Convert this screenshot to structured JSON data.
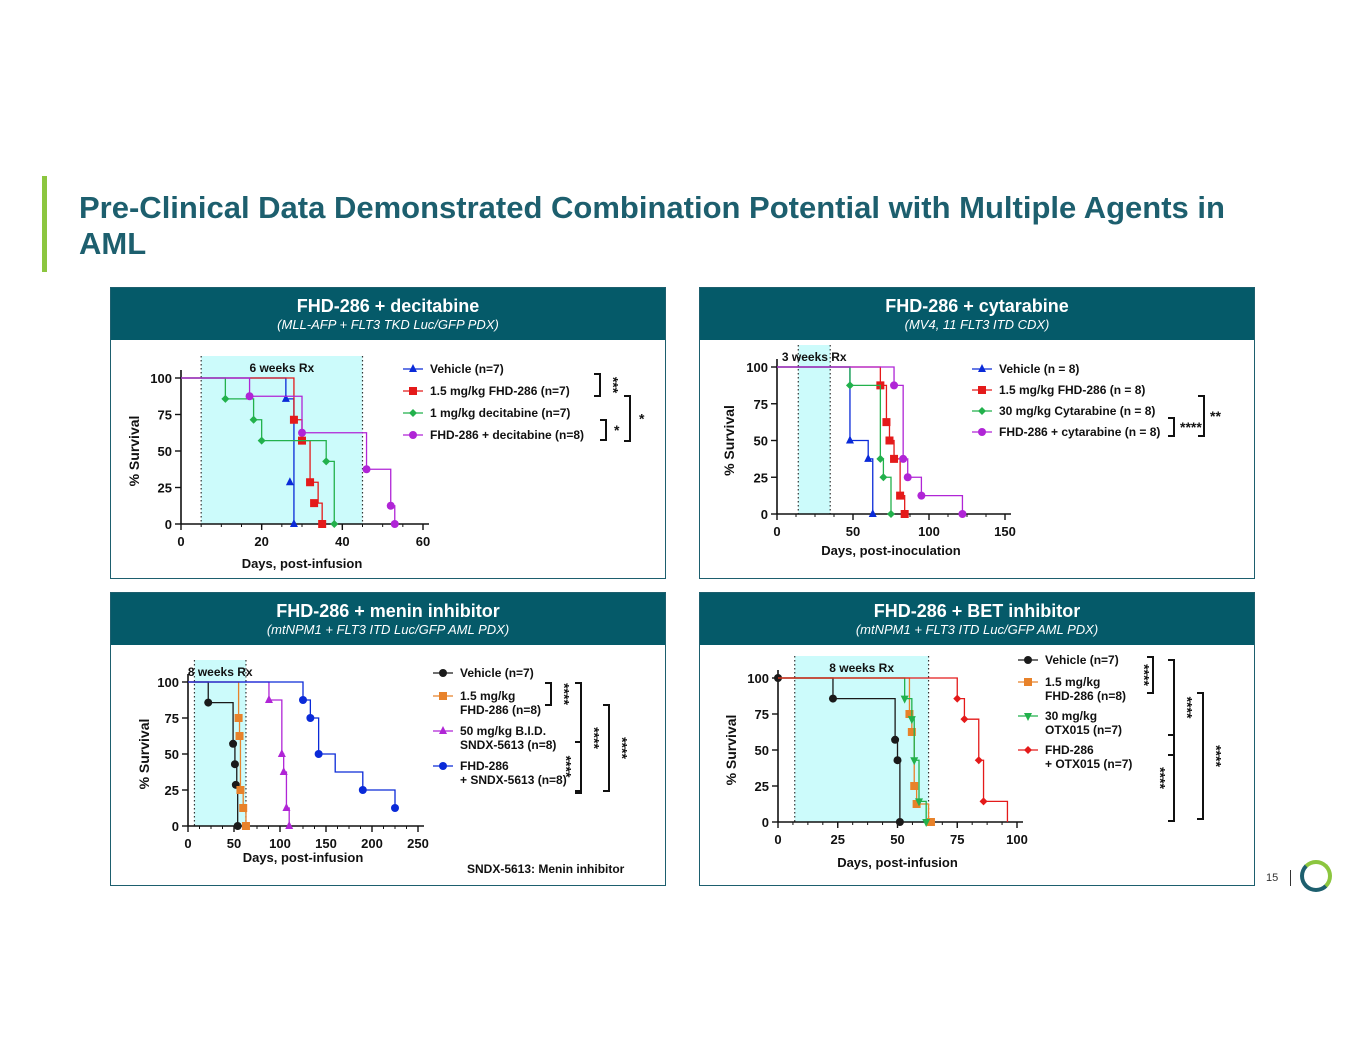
{
  "colors": {
    "title": "#1d5f6e",
    "accent_bar": "#8cc63f",
    "panel_header": "#055a69",
    "rx_shade": "#ccfbfb"
  },
  "slide": {
    "title": "Pre-Clinical Data Demonstrated Combination Potential with Multiple Agents in AML",
    "page_number": "15"
  },
  "chart_data": [
    {
      "type": "line",
      "title": "FHD-286 + decitabine",
      "subtitle": "(MLL-AFP + FLT3 TKD Luc/GFP PDX)",
      "xlabel": "Days, post-infusion",
      "ylabel": "% Survival",
      "xlim": [
        0,
        60
      ],
      "ylim": [
        0,
        100
      ],
      "xticks": [
        0,
        20,
        40,
        60
      ],
      "yticks": [
        0,
        25,
        50,
        75,
        100
      ],
      "rx_label": "6 weeks Rx",
      "rx_range": [
        5,
        45
      ],
      "significance": [
        "***",
        "*",
        "*"
      ],
      "series": [
        {
          "name": "Vehicle (n=7)",
          "color": "#0a2ad8",
          "marker": "triangle",
          "x": [
            0,
            26,
            28
          ],
          "y": [
            100,
            85.7,
            0
          ],
          "markers_x": [
            26,
            27,
            28
          ],
          "markers_y": [
            85.7,
            28.6,
            0
          ]
        },
        {
          "name": "1.5 mg/kg FHD-286 (n=7)",
          "color": "#e41a1a",
          "marker": "square",
          "x": [
            0,
            28,
            30,
            32,
            34,
            35
          ],
          "y": [
            100,
            71.4,
            57.1,
            28.6,
            14.3,
            0
          ],
          "markers_x": [
            28,
            30,
            32,
            33,
            35
          ],
          "markers_y": [
            71.4,
            57.1,
            28.6,
            14.3,
            0
          ]
        },
        {
          "name": "1 mg/kg decitabine (n=7)",
          "color": "#22b14c",
          "marker": "diamond",
          "x": [
            0,
            11,
            18,
            20,
            36,
            38
          ],
          "y": [
            100,
            85.7,
            71.4,
            57.1,
            42.9,
            0
          ],
          "markers_x": [
            11,
            18,
            20,
            36,
            38
          ],
          "markers_y": [
            85.7,
            71.4,
            57.1,
            42.9,
            0
          ]
        },
        {
          "name": "FHD-286 + decitabine (n=8)",
          "color": "#b025d6",
          "marker": "circle",
          "x": [
            0,
            17,
            30,
            46,
            52,
            53
          ],
          "y": [
            100,
            87.5,
            62.5,
            37.5,
            12.5,
            0
          ],
          "markers_x": [
            17,
            30,
            46,
            52,
            53
          ],
          "markers_y": [
            87.5,
            62.5,
            37.5,
            12.5,
            0
          ]
        }
      ]
    },
    {
      "type": "line",
      "title": "FHD-286 + cytarabine",
      "subtitle": "(MV4, 11 FLT3 ITD CDX)",
      "xlabel": "Days, post-inoculation",
      "ylabel": "% Survival",
      "xlim": [
        0,
        150
      ],
      "ylim": [
        0,
        100
      ],
      "xticks": [
        0,
        50,
        100,
        150
      ],
      "yticks": [
        0,
        25,
        50,
        75,
        100
      ],
      "rx_label": "3 weeks Rx",
      "rx_range": [
        14,
        35
      ],
      "significance": [
        "**",
        "****"
      ],
      "series": [
        {
          "name": "Vehicle (n = 8)",
          "color": "#0a2ad8",
          "marker": "triangle",
          "x": [
            0,
            48,
            60,
            63
          ],
          "y": [
            100,
            50,
            37.5,
            0
          ],
          "markers_x": [
            48,
            60,
            63
          ],
          "markers_y": [
            50,
            37.5,
            0
          ]
        },
        {
          "name": "1.5 mg/kg FHD-286 (n = 8)",
          "color": "#e41a1a",
          "marker": "square",
          "x": [
            0,
            68,
            72,
            74,
            77,
            81,
            84
          ],
          "y": [
            100,
            87.5,
            62.5,
            50,
            37.5,
            12.5,
            0
          ],
          "markers_x": [
            68,
            72,
            74,
            77,
            81,
            84
          ],
          "markers_y": [
            87.5,
            62.5,
            50,
            37.5,
            12.5,
            0
          ]
        },
        {
          "name": "30 mg/kg Cytarabine (n = 8)",
          "color": "#22b14c",
          "marker": "diamond",
          "x": [
            0,
            48,
            68,
            70,
            75
          ],
          "y": [
            100,
            87.5,
            37.5,
            25,
            0
          ],
          "markers_x": [
            48,
            68,
            70,
            75
          ],
          "markers_y": [
            87.5,
            37.5,
            25,
            0
          ]
        },
        {
          "name": "FHD-286 + cytarabine (n = 8)",
          "color": "#b025d6",
          "marker": "circle",
          "x": [
            0,
            77,
            83,
            86,
            95,
            122
          ],
          "y": [
            100,
            87.5,
            37.5,
            25,
            12.5,
            0
          ],
          "markers_x": [
            77,
            83,
            86,
            95,
            122
          ],
          "markers_y": [
            87.5,
            37.5,
            25,
            12.5,
            0
          ]
        }
      ]
    },
    {
      "type": "line",
      "title": "FHD-286 + menin inhibitor",
      "subtitle": "(mtNPM1 + FLT3 ITD Luc/GFP AML PDX)",
      "xlabel": "Days, post-infusion",
      "ylabel": "% Survival",
      "xlim": [
        0,
        250
      ],
      "ylim": [
        0,
        100
      ],
      "xticks": [
        0,
        50,
        100,
        150,
        200,
        250
      ],
      "yticks": [
        0,
        25,
        50,
        75,
        100
      ],
      "rx_label": "8 weeks  Rx",
      "rx_range": [
        7,
        63
      ],
      "significance": [
        "****",
        "****",
        "****",
        "****"
      ],
      "note": "SNDX-5613: Menin inhibitor",
      "series": [
        {
          "name": "Vehicle (n=7)",
          "color": "#1a1a1a",
          "marker": "circle",
          "x": [
            0,
            22,
            49,
            51,
            53,
            54
          ],
          "y": [
            100,
            85.7,
            57.1,
            42.9,
            28.6,
            0
          ],
          "markers_x": [
            22,
            49,
            51,
            52,
            54
          ],
          "markers_y": [
            85.7,
            57.1,
            42.9,
            28.6,
            0
          ]
        },
        {
          "name": "1.5 mg/kg FHD-286 (n=8)",
          "color": "#e8822a",
          "marker": "square",
          "x": [
            0,
            55,
            56,
            57,
            60,
            63
          ],
          "y": [
            100,
            75,
            62.5,
            25,
            12.5,
            0
          ],
          "markers_x": [
            55,
            56,
            57,
            60,
            63
          ],
          "markers_y": [
            75,
            62.5,
            25,
            12.5,
            0
          ]
        },
        {
          "name": "50 mg/kg B.I.D. SNDX-5613 (n=8)",
          "color": "#b025d6",
          "marker": "triangle",
          "x": [
            0,
            88,
            102,
            104,
            107,
            110
          ],
          "y": [
            100,
            87.5,
            50,
            37.5,
            12.5,
            0
          ],
          "markers_x": [
            88,
            102,
            104,
            107,
            110
          ],
          "markers_y": [
            87.5,
            50,
            37.5,
            12.5,
            0
          ]
        },
        {
          "name": "FHD-286 + SNDX-5613 (n=8)",
          "color": "#0a2ad8",
          "marker": "circle",
          "x": [
            0,
            125,
            133,
            142,
            160,
            190,
            225
          ],
          "y": [
            100,
            87.5,
            75,
            50,
            37.5,
            25,
            12.5
          ],
          "markers_x": [
            125,
            133,
            142,
            190,
            225
          ],
          "markers_y": [
            87.5,
            75,
            50,
            25,
            12.5
          ]
        }
      ]
    },
    {
      "type": "line",
      "title": "FHD-286 + BET inhibitor",
      "subtitle": "(mtNPM1 + FLT3 ITD Luc/GFP AML PDX)",
      "xlabel": "Days, post-infusion",
      "ylabel": "% Survival",
      "xlim": [
        0,
        100
      ],
      "ylim": [
        0,
        100
      ],
      "xticks": [
        0,
        25,
        50,
        75,
        100
      ],
      "yticks": [
        0,
        25,
        50,
        75,
        100
      ],
      "rx_label": "8 weeks  Rx",
      "rx_range": [
        7,
        63
      ],
      "significance": [
        "****",
        "****",
        "****",
        "****"
      ],
      "series": [
        {
          "name": "Vehicle (n=7)",
          "color": "#1a1a1a",
          "marker": "circle",
          "x": [
            0,
            23,
            49,
            50,
            51
          ],
          "y": [
            100,
            85.7,
            57.1,
            42.9,
            0
          ],
          "markers_x": [
            0,
            23,
            49,
            50,
            51
          ],
          "markers_y": [
            100,
            85.7,
            57.1,
            42.9,
            0
          ]
        },
        {
          "name": "1.5 mg/kg FHD-286 (n=8)",
          "color": "#e8822a",
          "marker": "square",
          "x": [
            0,
            55,
            56,
            57,
            58,
            63
          ],
          "y": [
            100,
            75,
            62.5,
            25,
            12.5,
            0
          ],
          "markers_x": [
            55,
            56,
            57,
            58,
            64
          ],
          "markers_y": [
            75,
            62.5,
            25,
            12.5,
            0
          ]
        },
        {
          "name": "30 mg/kg OTX015 (n=7)",
          "color": "#22b14c",
          "marker": "triangle-down",
          "x": [
            0,
            53,
            56,
            57,
            59,
            62
          ],
          "y": [
            100,
            85.7,
            71.4,
            42.9,
            14.3,
            0
          ],
          "markers_x": [
            53,
            56,
            57,
            59,
            62
          ],
          "markers_y": [
            85.7,
            71.4,
            42.9,
            14.3,
            0
          ]
        },
        {
          "name": "FHD-286 + OTX015 (n=7)",
          "color": "#e41a1a",
          "marker": "diamond",
          "x": [
            0,
            75,
            78,
            84,
            86,
            96
          ],
          "y": [
            100,
            85.7,
            71.4,
            42.9,
            14.3,
            0
          ],
          "markers_x": [
            75,
            78,
            84,
            86
          ],
          "markers_y": [
            85.7,
            71.4,
            42.9,
            14.3
          ]
        }
      ]
    }
  ],
  "legends": [
    [
      "Vehicle (n=7)",
      "1.5 mg/kg FHD-286 (n=7)",
      "1 mg/kg decitabine (n=7)",
      "FHD-286 + decitabine (n=8)"
    ],
    [
      "Vehicle (n = 8)",
      "1.5 mg/kg FHD-286 (n = 8)",
      "30 mg/kg Cytarabine (n = 8)",
      "FHD-286 + cytarabine (n = 8)"
    ],
    [
      [
        "Vehicle (n=7)"
      ],
      [
        "1.5 mg/kg",
        "FHD-286 (n=8)"
      ],
      [
        "50 mg/kg B.I.D.",
        "SNDX-5613 (n=8)"
      ],
      [
        "FHD-286",
        "+ SNDX-5613 (n=8)"
      ]
    ],
    [
      [
        "Vehicle (n=7)"
      ],
      [
        "1.5 mg/kg",
        "FHD-286 (n=8)"
      ],
      [
        "30 mg/kg",
        "OTX015 (n=7)"
      ],
      [
        "FHD-286",
        "+ OTX015 (n=7)"
      ]
    ]
  ]
}
